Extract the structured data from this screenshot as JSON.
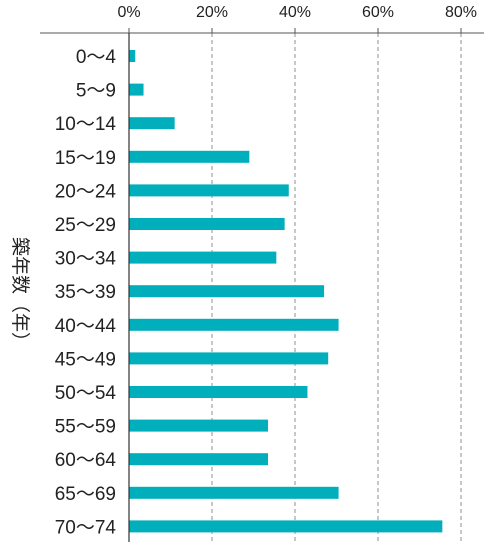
{
  "chart_data": {
    "type": "bar",
    "orientation": "horizontal",
    "ylabel": "築年数（年）",
    "xlim": [
      0,
      80
    ],
    "xticks": [
      0,
      20,
      40,
      60,
      80
    ],
    "xtick_labels": [
      "0%",
      "20%",
      "40%",
      "60%",
      "80%"
    ],
    "x_axis_position": "top",
    "grid": "vertical dashed",
    "categories": [
      "0〜4",
      "5〜9",
      "10〜14",
      "15〜19",
      "20〜24",
      "25〜29",
      "30〜34",
      "35〜39",
      "40〜44",
      "45〜49",
      "50〜54",
      "55〜59",
      "60〜64",
      "65〜69",
      "70〜74"
    ],
    "values": [
      1.5,
      3.5,
      11,
      29,
      38.5,
      37.5,
      35.5,
      47,
      50.5,
      48,
      43,
      33.5,
      33.5,
      50.5,
      75.5
    ],
    "bar_color": "#00aebc"
  }
}
